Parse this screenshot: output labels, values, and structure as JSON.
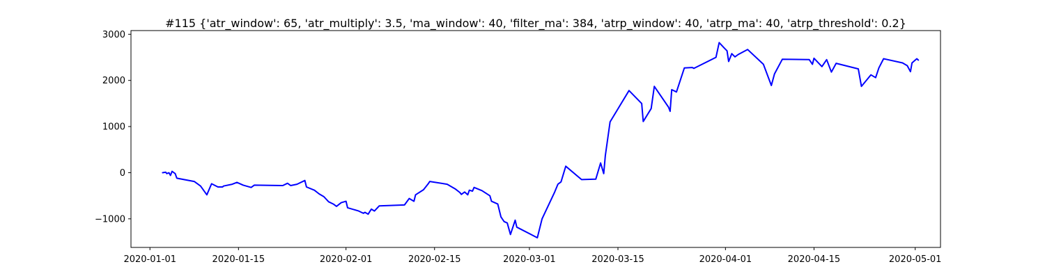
{
  "chart_data": {
    "type": "line",
    "title": "#115 {'atr_window': 65, 'atr_multiply': 3.5, 'ma_window': 40, 'filter_ma': 384, 'atrp_window': 40, 'atrp_ma': 40, 'atrp_threshold': 0.2}",
    "xlabel": "",
    "ylabel": "",
    "x_axis_type": "date",
    "xlim": [
      "2019-12-29",
      "2020-05-05"
    ],
    "ylim": [
      -1620,
      3080
    ],
    "grid": false,
    "legend": "none",
    "x_ticks": [
      "2020-01-01",
      "2020-01-15",
      "2020-02-01",
      "2020-02-15",
      "2020-03-01",
      "2020-03-15",
      "2020-04-01",
      "2020-04-15",
      "2020-05-01"
    ],
    "y_ticks": [
      {
        "value": 3000,
        "label": "3000"
      },
      {
        "value": 2000,
        "label": "2000"
      },
      {
        "value": 1000,
        "label": "1000"
      },
      {
        "value": 0,
        "label": "0"
      },
      {
        "value": -1000,
        "label": "−1000"
      }
    ],
    "series": [
      {
        "color": "#0000ff",
        "points": [
          [
            "2020-01-03",
            0
          ],
          [
            "2020-01-03 12:00",
            10
          ],
          [
            "2020-01-03 16:00",
            -20
          ],
          [
            "2020-01-04",
            0
          ],
          [
            "2020-01-04 06:00",
            -60
          ],
          [
            "2020-01-04 12:00",
            30
          ],
          [
            "2020-01-05",
            -20
          ],
          [
            "2020-01-05 06:00",
            -120
          ],
          [
            "2020-01-08",
            -190
          ],
          [
            "2020-01-09",
            -290
          ],
          [
            "2020-01-10",
            -480
          ],
          [
            "2020-01-10 18:00",
            -240
          ],
          [
            "2020-01-11 18:00",
            -310
          ],
          [
            "2020-01-12 12:00",
            -310
          ],
          [
            "2020-01-12 15:00",
            -290
          ],
          [
            "2020-01-14",
            -250
          ],
          [
            "2020-01-14 18:00",
            -210
          ],
          [
            "2020-01-15 18:00",
            -270
          ],
          [
            "2020-01-17",
            -320
          ],
          [
            "2020-01-17 12:00",
            -270
          ],
          [
            "2020-01-22",
            -280
          ],
          [
            "2020-01-22 18:00",
            -230
          ],
          [
            "2020-01-23 06:00",
            -280
          ],
          [
            "2020-01-24 06:00",
            -250
          ],
          [
            "2020-01-25 12:00",
            -170
          ],
          [
            "2020-01-25 18:00",
            -310
          ],
          [
            "2020-01-27",
            -380
          ],
          [
            "2020-01-27 18:00",
            -460
          ],
          [
            "2020-01-28 12:00",
            -520
          ],
          [
            "2020-01-29 06:00",
            -630
          ],
          [
            "2020-01-30",
            -680
          ],
          [
            "2020-01-30 12:00",
            -730
          ],
          [
            "2020-01-31 06:00",
            -650
          ],
          [
            "2020-02-01",
            -620
          ],
          [
            "2020-02-01 06:00",
            -760
          ],
          [
            "2020-02-03",
            -830
          ],
          [
            "2020-02-03 18:00",
            -880
          ],
          [
            "2020-02-04",
            -860
          ],
          [
            "2020-02-04 12:00",
            -900
          ],
          [
            "2020-02-05",
            -790
          ],
          [
            "2020-02-05 12:00",
            -830
          ],
          [
            "2020-02-06 06:00",
            -720
          ],
          [
            "2020-02-10 06:00",
            -700
          ],
          [
            "2020-02-11",
            -560
          ],
          [
            "2020-02-11 18:00",
            -620
          ],
          [
            "2020-02-12",
            -480
          ],
          [
            "2020-02-13 06:00",
            -370
          ],
          [
            "2020-02-14",
            -240
          ],
          [
            "2020-02-14 06:00",
            -190
          ],
          [
            "2020-02-17",
            -250
          ],
          [
            "2020-02-18 06:00",
            -350
          ],
          [
            "2020-02-19",
            -430
          ],
          [
            "2020-02-19 06:00",
            -470
          ],
          [
            "2020-02-19 18:00",
            -420
          ],
          [
            "2020-02-20 06:00",
            -480
          ],
          [
            "2020-02-20 12:00",
            -380
          ],
          [
            "2020-02-21",
            -400
          ],
          [
            "2020-02-21 06:00",
            -320
          ],
          [
            "2020-02-22 12:00",
            -390
          ],
          [
            "2020-02-23 18:00",
            -500
          ],
          [
            "2020-02-24",
            -620
          ],
          [
            "2020-02-25",
            -680
          ],
          [
            "2020-02-25 12:00",
            -960
          ],
          [
            "2020-02-26",
            -1060
          ],
          [
            "2020-02-26 12:00",
            -1090
          ],
          [
            "2020-02-27",
            -1340
          ],
          [
            "2020-02-27 18:00",
            -1030
          ],
          [
            "2020-02-28",
            -1180
          ],
          [
            "2020-03-02 06:00",
            -1410
          ],
          [
            "2020-03-03",
            -1000
          ],
          [
            "2020-03-05",
            -420
          ],
          [
            "2020-03-05 12:00",
            -250
          ],
          [
            "2020-03-06",
            -200
          ],
          [
            "2020-03-06 18:00",
            140
          ],
          [
            "2020-03-09 06:00",
            -150
          ],
          [
            "2020-03-11 12:00",
            -140
          ],
          [
            "2020-03-12 06:00",
            210
          ],
          [
            "2020-03-12 18:00",
            -20
          ],
          [
            "2020-03-13",
            370
          ],
          [
            "2020-03-13 18:00",
            1100
          ],
          [
            "2020-03-16 18:00",
            1780
          ],
          [
            "2020-03-18 18:00",
            1500
          ],
          [
            "2020-03-19",
            1110
          ],
          [
            "2020-03-20 06:00",
            1390
          ],
          [
            "2020-03-20 18:00",
            1870
          ],
          [
            "2020-03-23",
            1420
          ],
          [
            "2020-03-23 06:00",
            1330
          ],
          [
            "2020-03-23 12:00",
            1800
          ],
          [
            "2020-03-24 06:00",
            1750
          ],
          [
            "2020-03-25 12:00",
            2270
          ],
          [
            "2020-03-26 18:00",
            2280
          ],
          [
            "2020-03-27",
            2260
          ],
          [
            "2020-03-30 12:00",
            2500
          ],
          [
            "2020-03-31",
            2820
          ],
          [
            "2020-03-31 18:00",
            2710
          ],
          [
            "2020-04-01 06:00",
            2640
          ],
          [
            "2020-04-01 12:00",
            2410
          ],
          [
            "2020-04-02",
            2580
          ],
          [
            "2020-04-02 12:00",
            2510
          ],
          [
            "2020-04-03",
            2560
          ],
          [
            "2020-04-04 12:00",
            2670
          ],
          [
            "2020-04-07",
            2350
          ],
          [
            "2020-04-08 06:00",
            1890
          ],
          [
            "2020-04-08 18:00",
            2140
          ],
          [
            "2020-04-10",
            2460
          ],
          [
            "2020-04-14 06:00",
            2450
          ],
          [
            "2020-04-14 18:00",
            2350
          ],
          [
            "2020-04-15",
            2480
          ],
          [
            "2020-04-16 06:00",
            2300
          ],
          [
            "2020-04-17",
            2450
          ],
          [
            "2020-04-17 18:00",
            2180
          ],
          [
            "2020-04-18 12:00",
            2370
          ],
          [
            "2020-04-22",
            2250
          ],
          [
            "2020-04-22 12:00",
            1870
          ],
          [
            "2020-04-24",
            2120
          ],
          [
            "2020-04-24 18:00",
            2060
          ],
          [
            "2020-04-25 06:00",
            2270
          ],
          [
            "2020-04-26",
            2470
          ],
          [
            "2020-04-29",
            2380
          ],
          [
            "2020-04-29 18:00",
            2320
          ],
          [
            "2020-04-30 06:00",
            2190
          ],
          [
            "2020-04-30 12:00",
            2380
          ],
          [
            "2020-05-01 06:00",
            2470
          ],
          [
            "2020-05-01 12:00",
            2440
          ]
        ]
      }
    ]
  }
}
